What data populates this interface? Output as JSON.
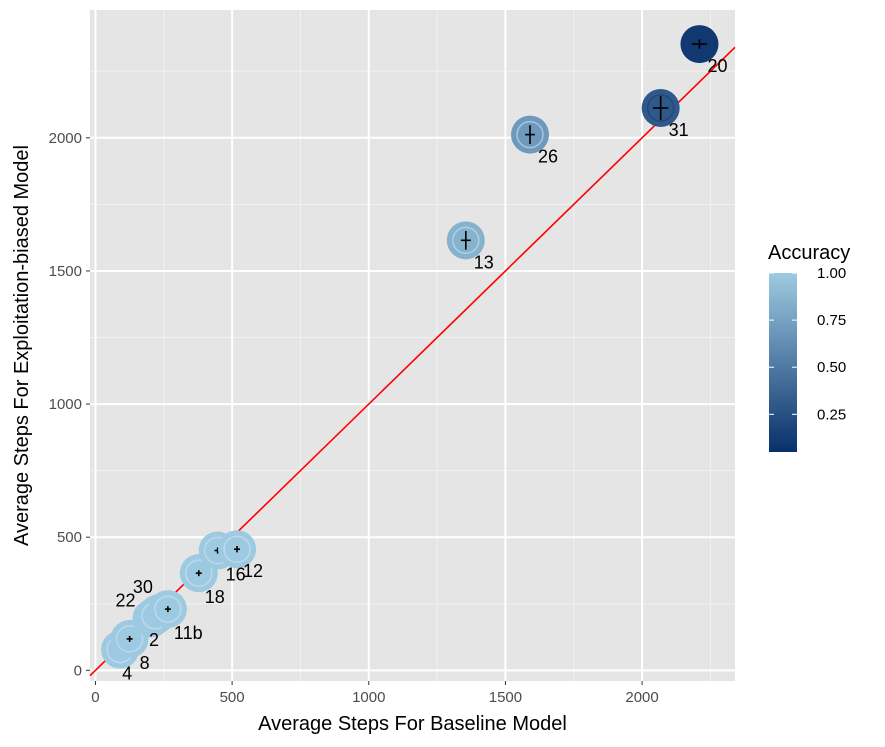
{
  "chart_data": {
    "type": "scatter",
    "title": "",
    "xlabel": "Average Steps For Baseline Model",
    "ylabel": "Average Steps For Exploitation-biased Model",
    "xlim": [
      -20,
      2340
    ],
    "ylim": [
      -40,
      2480
    ],
    "x_ticks": [
      0,
      500,
      1000,
      1500,
      2000
    ],
    "y_ticks": [
      0,
      500,
      1000,
      1500,
      2000
    ],
    "grid": true,
    "panel_background": "#e5e5e5",
    "reference_line": {
      "slope": 1,
      "intercept": 0,
      "color": "#ff0000"
    },
    "color_scale": {
      "name": "Accuracy",
      "low_color": "#08306b",
      "high_color": "#9ecae1",
      "ticks": [
        0.25,
        0.5,
        0.75,
        1.0
      ],
      "tick_labels": [
        "0.25",
        "0.50",
        "0.75",
        "1.00"
      ],
      "range": [
        0.05,
        1.0
      ]
    },
    "legend_placement": "right",
    "points": [
      {
        "label": "4",
        "x": 90,
        "y": 78,
        "accuracy": 1.0,
        "err_x": 5,
        "err_y": 8,
        "label_dx": 2,
        "label_dy": 30
      },
      {
        "label": "8",
        "x": 125,
        "y": 118,
        "accuracy": 1.0,
        "err_x": 5,
        "err_y": 8,
        "label_dx": 10,
        "label_dy": 30
      },
      {
        "label": "22",
        "x": 205,
        "y": 195,
        "accuracy": 1.0,
        "err_x": 6,
        "err_y": 8,
        "label_dx": -36,
        "label_dy": -12
      },
      {
        "label": "30",
        "x": 232,
        "y": 215,
        "accuracy": 1.0,
        "err_x": 6,
        "err_y": 8,
        "label_dx": -26,
        "label_dy": -20
      },
      {
        "label": "2",
        "x": 218,
        "y": 205,
        "accuracy": 1.0,
        "err_x": 6,
        "err_y": 8,
        "label_dx": -6,
        "label_dy": 30
      },
      {
        "label": "11b",
        "x": 265,
        "y": 230,
        "accuracy": 1.0,
        "err_x": 8,
        "err_y": 10,
        "label_dx": 6,
        "label_dy": 30
      },
      {
        "label": "18",
        "x": 378,
        "y": 365,
        "accuracy": 1.0,
        "err_x": 8,
        "err_y": 10,
        "label_dx": 6,
        "label_dy": 30
      },
      {
        "label": "16",
        "x": 447,
        "y": 450,
        "accuracy": 1.0,
        "err_x": 9,
        "err_y": 10,
        "label_dx": 8,
        "label_dy": 30
      },
      {
        "label": "12",
        "x": 518,
        "y": 455,
        "accuracy": 1.0,
        "err_x": 11,
        "err_y": 12,
        "label_dx": 6,
        "label_dy": 28
      },
      {
        "label": "13",
        "x": 1355,
        "y": 1615,
        "accuracy": 0.85,
        "err_x": 18,
        "err_y": 35,
        "label_dx": 8,
        "label_dy": 28
      },
      {
        "label": "26",
        "x": 1590,
        "y": 2012,
        "accuracy": 0.7,
        "err_x": 18,
        "err_y": 35,
        "label_dx": 8,
        "label_dy": 28
      },
      {
        "label": "31",
        "x": 2068,
        "y": 2112,
        "accuracy": 0.3,
        "err_x": 28,
        "err_y": 45,
        "label_dx": 8,
        "label_dy": 28
      },
      {
        "label": "20",
        "x": 2210,
        "y": 2352,
        "accuracy": 0.1,
        "err_x": 28,
        "err_y": 18,
        "label_dx": 8,
        "label_dy": 28
      }
    ]
  }
}
